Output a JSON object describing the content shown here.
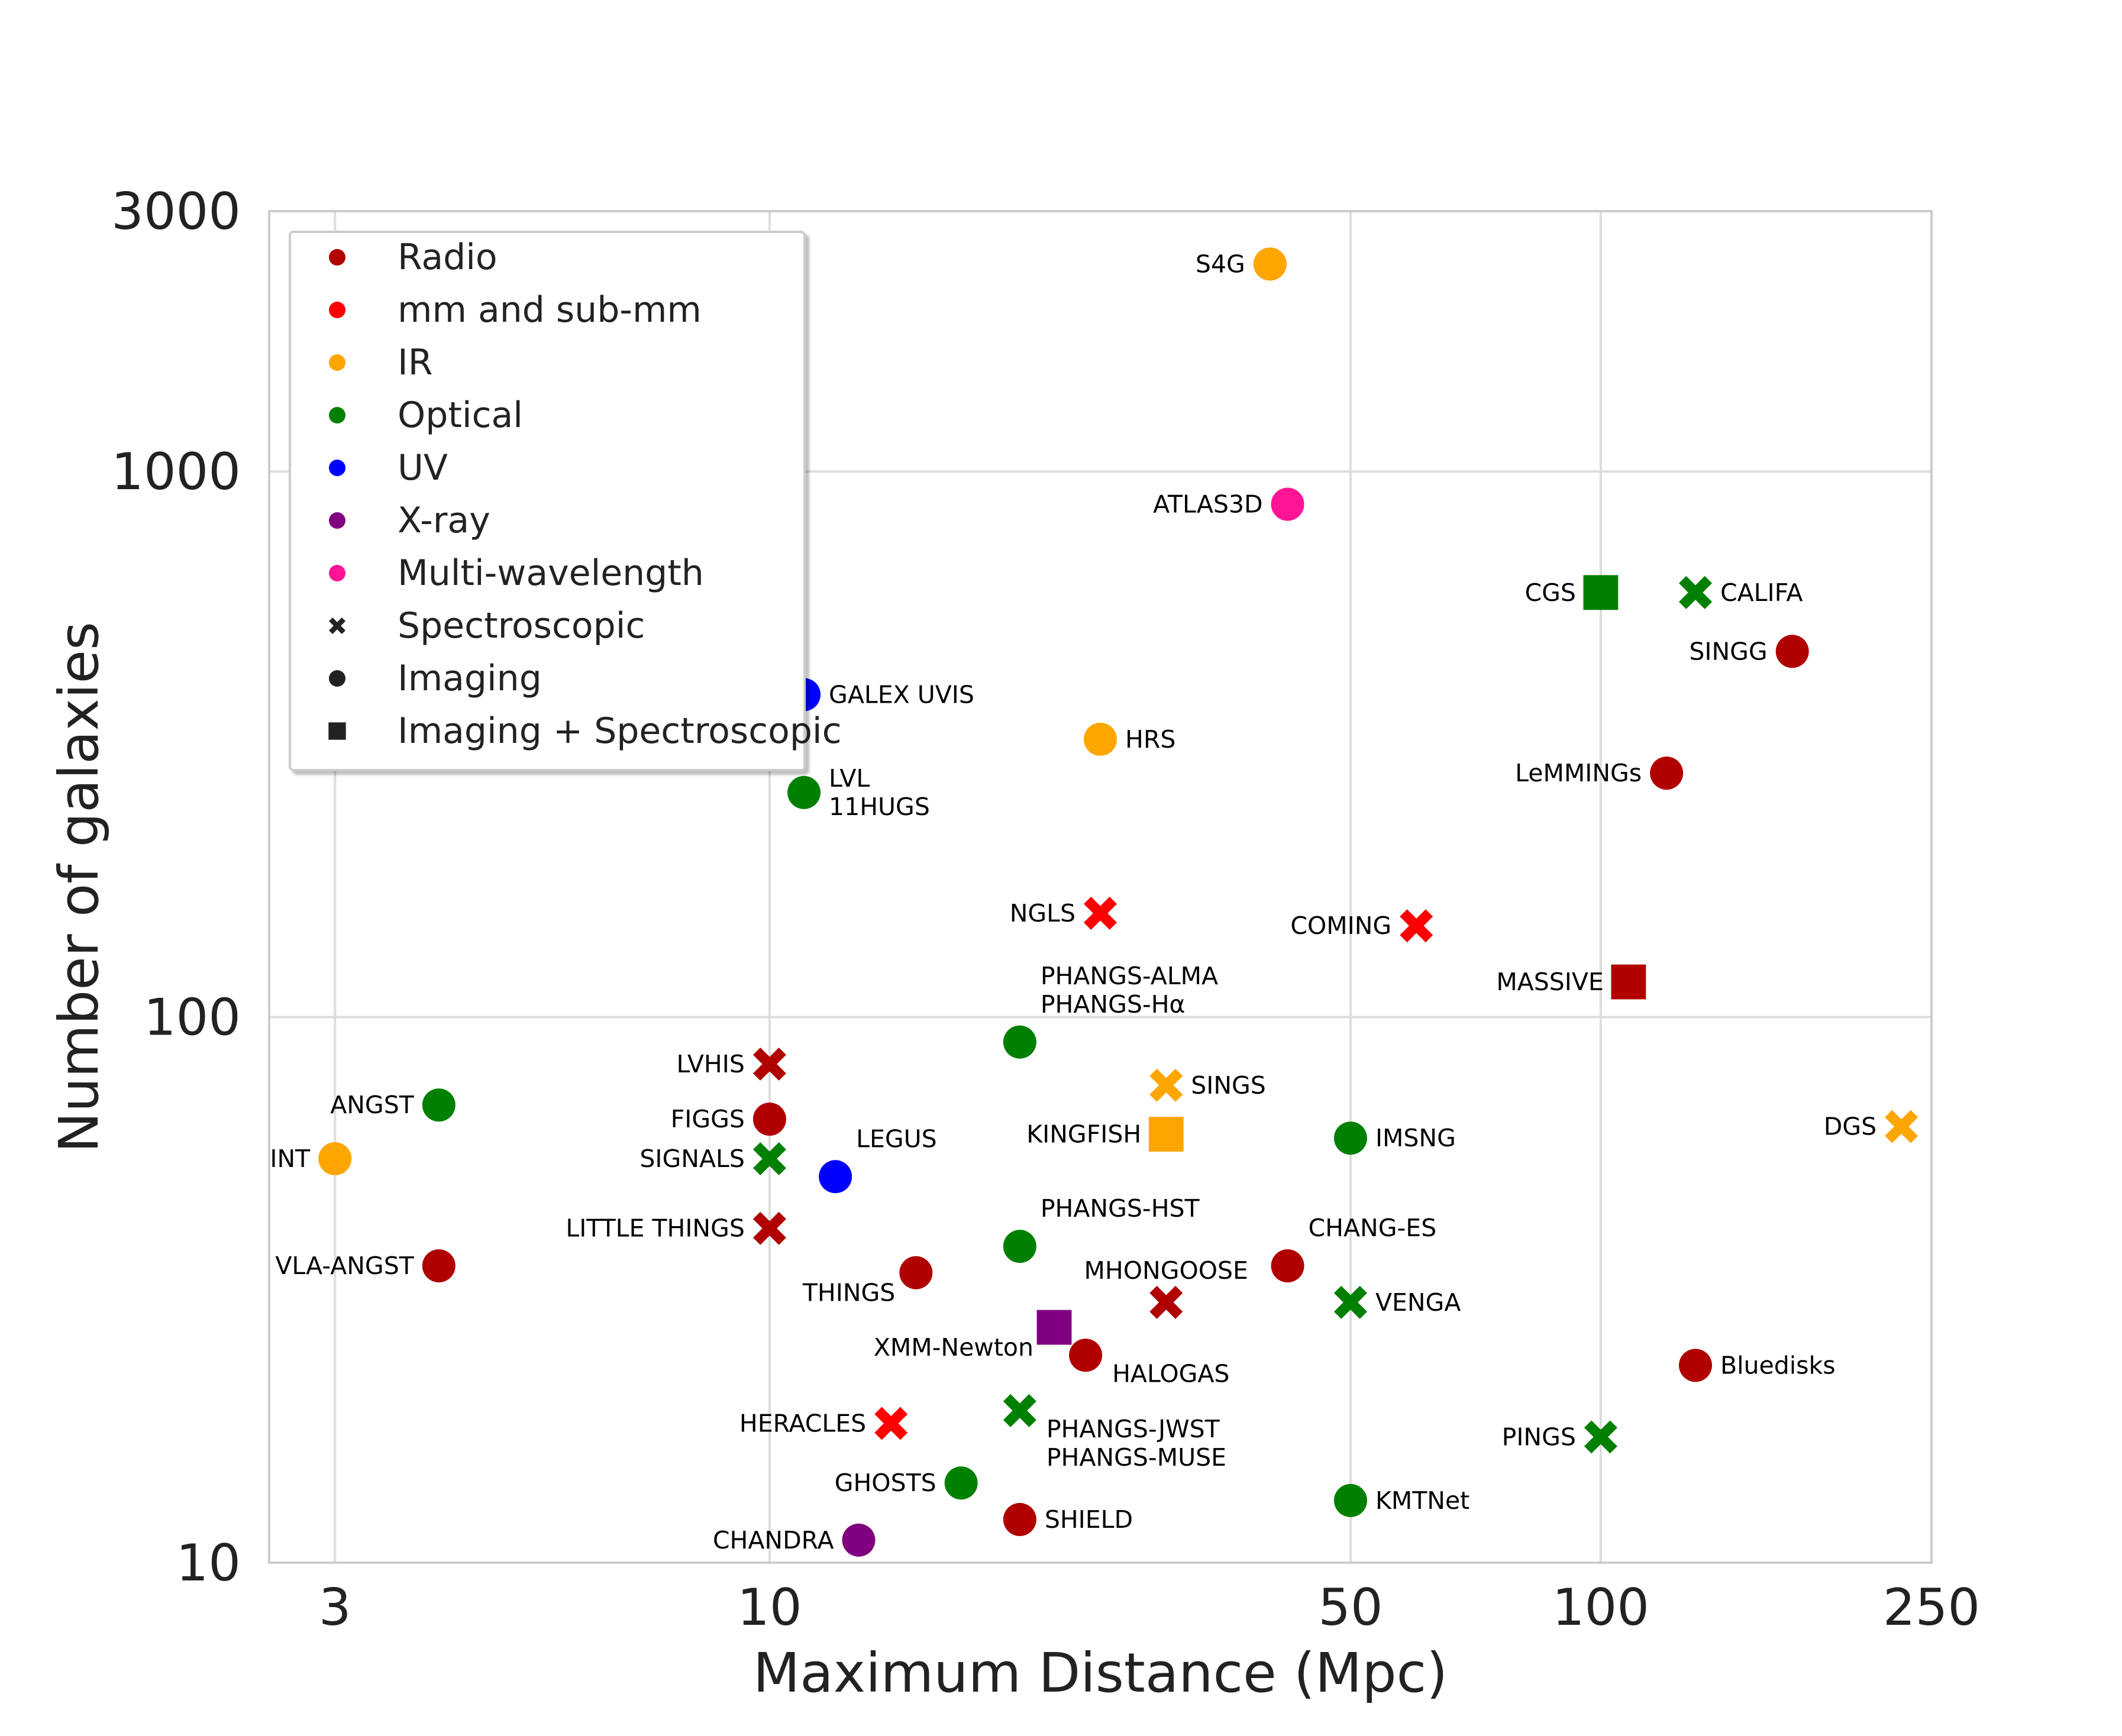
{
  "chart_data": {
    "type": "scatter",
    "xlabel": "Maximum Distance (Mpc)",
    "ylabel": "Number of galaxies",
    "xscale": "log",
    "yscale": "log",
    "xlim": [
      2.5,
      250
    ],
    "ylim": [
      10,
      3000
    ],
    "xticks": [
      3,
      10,
      50,
      100,
      250
    ],
    "yticks": [
      10,
      100,
      1000,
      3000
    ],
    "grid": true,
    "legend_position": "top-left",
    "colors": {
      "Radio": "#b00000",
      "mm and sub-mm": "#ff0000",
      "IR": "#ffa500",
      "Optical": "#008000",
      "UV": "#0000ff",
      "X-ray": "#800080",
      "Multi-wavelength": "#ff1493"
    },
    "legend": [
      {
        "label": "Radio",
        "color": "#b00000",
        "marker": "circle"
      },
      {
        "label": "mm and sub-mm",
        "color": "#ff0000",
        "marker": "circle"
      },
      {
        "label": "IR",
        "color": "#ffa500",
        "marker": "circle"
      },
      {
        "label": "Optical",
        "color": "#008000",
        "marker": "circle"
      },
      {
        "label": "UV",
        "color": "#0000ff",
        "marker": "circle"
      },
      {
        "label": "X-ray",
        "color": "#800080",
        "marker": "circle"
      },
      {
        "label": "Multi-wavelength",
        "color": "#ff1493",
        "marker": "circle"
      },
      {
        "label": "Spectroscopic",
        "color": "#222222",
        "marker": "x"
      },
      {
        "label": "Imaging",
        "color": "#222222",
        "marker": "circle"
      },
      {
        "label": "Imaging + Spectroscopic",
        "color": "#222222",
        "marker": "square"
      }
    ],
    "points": [
      {
        "labels": [
          "S4G"
        ],
        "x": 40,
        "y": 2400,
        "band": "IR",
        "marker": "circle",
        "label_side": "left"
      },
      {
        "labels": [
          "ATLAS3D"
        ],
        "x": 42,
        "y": 871,
        "band": "Multi-wavelength",
        "marker": "circle",
        "label_side": "left"
      },
      {
        "labels": [
          "CGS"
        ],
        "x": 100,
        "y": 600,
        "band": "Optical",
        "marker": "square",
        "label_side": "left"
      },
      {
        "labels": [
          "CALIFA"
        ],
        "x": 130,
        "y": 600,
        "band": "Optical",
        "marker": "x",
        "label_side": "right"
      },
      {
        "labels": [
          "SINGG"
        ],
        "x": 170,
        "y": 468,
        "band": "Radio",
        "marker": "circle",
        "label_side": "left"
      },
      {
        "labels": [
          "GALEX UVIS"
        ],
        "x": 11,
        "y": 390,
        "band": "UV",
        "marker": "circle",
        "label_side": "right"
      },
      {
        "labels": [
          "HRS"
        ],
        "x": 25,
        "y": 323,
        "band": "IR",
        "marker": "circle",
        "label_side": "right"
      },
      {
        "labels": [
          "LVL",
          "11HUGS"
        ],
        "x": 11,
        "y": 258,
        "band": "Optical",
        "marker": "circle",
        "label_side": "right"
      },
      {
        "labels": [
          "LeMMINGs"
        ],
        "x": 120,
        "y": 280,
        "band": "Radio",
        "marker": "circle",
        "label_side": "left"
      },
      {
        "labels": [
          "NGLS"
        ],
        "x": 25,
        "y": 155,
        "band": "mm and sub-mm",
        "marker": "x",
        "label_side": "left"
      },
      {
        "labels": [
          "COMING"
        ],
        "x": 60,
        "y": 147,
        "band": "mm and sub-mm",
        "marker": "x",
        "label_side": "left"
      },
      {
        "labels": [
          "MASSIVE"
        ],
        "x": 108,
        "y": 116,
        "band": "Radio",
        "marker": "square",
        "label_side": "left"
      },
      {
        "labels": [
          "PHANGS-ALMA",
          "PHANGS-Hα"
        ],
        "x": 20,
        "y": 90,
        "band": "Optical",
        "marker": "circle",
        "label_side": "above-right"
      },
      {
        "labels": [
          "LVHIS"
        ],
        "x": 10,
        "y": 82,
        "band": "Radio",
        "marker": "x",
        "label_side": "left"
      },
      {
        "labels": [
          "ANGST"
        ],
        "x": 4,
        "y": 69,
        "band": "Optical",
        "marker": "circle",
        "label_side": "left"
      },
      {
        "labels": [
          "SINGS"
        ],
        "x": 30,
        "y": 75,
        "band": "IR",
        "marker": "x",
        "label_side": "right"
      },
      {
        "labels": [
          "FIGGS"
        ],
        "x": 10,
        "y": 65,
        "band": "Radio",
        "marker": "circle",
        "label_side": "left"
      },
      {
        "labels": [
          "KINGFISH"
        ],
        "x": 30,
        "y": 61,
        "band": "IR",
        "marker": "square",
        "label_side": "left"
      },
      {
        "labels": [
          "IMSNG"
        ],
        "x": 50,
        "y": 60,
        "band": "Optical",
        "marker": "circle",
        "label_side": "right"
      },
      {
        "labels": [
          "DGS"
        ],
        "x": 230,
        "y": 63,
        "band": "IR",
        "marker": "x",
        "label_side": "left"
      },
      {
        "labels": [
          "INT"
        ],
        "x": 3,
        "y": 55,
        "band": "IR",
        "marker": "circle",
        "label_side": "left"
      },
      {
        "labels": [
          "SIGNALS"
        ],
        "x": 10,
        "y": 55,
        "band": "Optical",
        "marker": "x",
        "label_side": "left"
      },
      {
        "labels": [
          "LEGUS"
        ],
        "x": 12,
        "y": 51,
        "band": "UV",
        "marker": "circle",
        "label_side": "above-right"
      },
      {
        "labels": [
          "LITTLE THINGS"
        ],
        "x": 10,
        "y": 41,
        "band": "Radio",
        "marker": "x",
        "label_side": "left"
      },
      {
        "labels": [
          "PHANGS-HST"
        ],
        "x": 20,
        "y": 38,
        "band": "Optical",
        "marker": "circle",
        "label_side": "above-right"
      },
      {
        "labels": [
          "VLA-ANGST"
        ],
        "x": 4,
        "y": 35,
        "band": "Radio",
        "marker": "circle",
        "label_side": "left"
      },
      {
        "labels": [
          "CHANG-ES"
        ],
        "x": 42,
        "y": 35,
        "band": "Radio",
        "marker": "circle",
        "label_side": "above-right"
      },
      {
        "labels": [
          "THINGS"
        ],
        "x": 15,
        "y": 34,
        "band": "Radio",
        "marker": "circle",
        "label_side": "below-left"
      },
      {
        "labels": [
          "MHONGOOSE"
        ],
        "x": 30,
        "y": 30,
        "band": "Radio",
        "marker": "x",
        "label_side": "above"
      },
      {
        "labels": [
          "VENGA"
        ],
        "x": 50,
        "y": 30,
        "band": "Optical",
        "marker": "x",
        "label_side": "right"
      },
      {
        "labels": [
          "XMM-Newton"
        ],
        "x": 22,
        "y": 27,
        "band": "X-ray",
        "marker": "square",
        "label_side": "below-left"
      },
      {
        "labels": [
          "HALOGAS"
        ],
        "x": 24,
        "y": 24,
        "band": "Radio",
        "marker": "circle",
        "label_side": "below-right"
      },
      {
        "labels": [
          "Bluedisks"
        ],
        "x": 130,
        "y": 23,
        "band": "Radio",
        "marker": "circle",
        "label_side": "right"
      },
      {
        "labels": [
          "PHANGS-JWST",
          "PHANGS-MUSE"
        ],
        "x": 20,
        "y": 19,
        "band": "Optical",
        "marker": "x",
        "label_side": "below-right"
      },
      {
        "labels": [
          "HERACLES"
        ],
        "x": 14,
        "y": 18,
        "band": "mm and sub-mm",
        "marker": "x",
        "label_side": "left"
      },
      {
        "labels": [
          "PINGS"
        ],
        "x": 100,
        "y": 17,
        "band": "Optical",
        "marker": "x",
        "label_side": "left"
      },
      {
        "labels": [
          "GHOSTS"
        ],
        "x": 17,
        "y": 14,
        "band": "Optical",
        "marker": "circle",
        "label_side": "left"
      },
      {
        "labels": [
          "KMTNet"
        ],
        "x": 50,
        "y": 13,
        "band": "Optical",
        "marker": "circle",
        "label_side": "right"
      },
      {
        "labels": [
          "SHIELD"
        ],
        "x": 20,
        "y": 12,
        "band": "Radio",
        "marker": "circle",
        "label_side": "right"
      },
      {
        "labels": [
          "CHANDRA"
        ],
        "x": 12.8,
        "y": 11,
        "band": "X-ray",
        "marker": "circle",
        "label_side": "left"
      }
    ]
  }
}
